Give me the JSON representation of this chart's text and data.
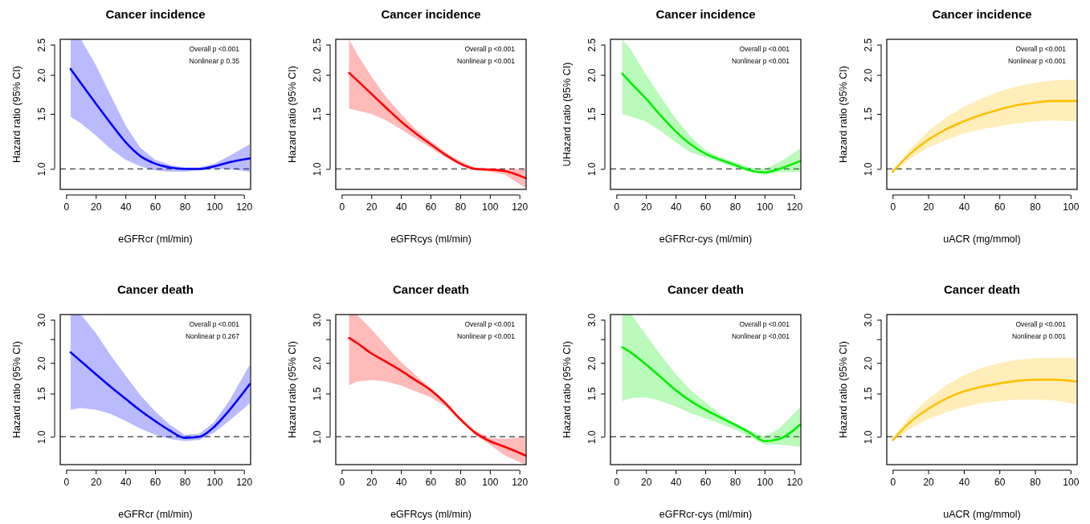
{
  "chart_data": [
    {
      "type": "line",
      "title": "Cancer incidence",
      "xlabel": "eGFRcr (ml/min)",
      "ylabel": "Hazard ratio (95% CI)",
      "log": "y",
      "xlim": [
        -4,
        124.5
      ],
      "xticks": [
        0,
        20,
        40,
        60,
        80,
        100,
        120
      ],
      "ylim": [
        0.86,
        2.6
      ],
      "yticks": [
        {
          "value": 1,
          "label": "1.0"
        },
        {
          "value": 1.5,
          "label": "1.5"
        },
        {
          "value": 2,
          "label": "2.0"
        },
        {
          "value": 2.5,
          "label": "2.5"
        }
      ],
      "annotations": [
        "Overall p <0.001",
        "Nonlinear p 0.35"
      ],
      "ref_lines": [
        {
          "axis": "y",
          "value": 1,
          "line_style": "dashed",
          "color": "#555555"
        }
      ],
      "series": [
        {
          "color": "#0000ff",
          "x": [
            3,
            10,
            20,
            30,
            40,
            50,
            60,
            70,
            80,
            90,
            100,
            110,
            124
          ],
          "values": [
            2.09,
            1.88,
            1.62,
            1.4,
            1.22,
            1.1,
            1.04,
            1.01,
            1.0,
            1.0,
            1.02,
            1.05,
            1.08
          ],
          "upper": [
            2.6,
            2.6,
            2.15,
            1.72,
            1.38,
            1.17,
            1.07,
            1.03,
            1.01,
            1.01,
            1.04,
            1.1,
            1.2
          ],
          "lower": [
            1.47,
            1.4,
            1.28,
            1.16,
            1.07,
            1.02,
            0.99,
            0.98,
            0.98,
            0.99,
            1.0,
            1.0,
            0.98
          ]
        }
      ]
    },
    {
      "type": "line",
      "title": "Cancer incidence",
      "xlabel": "eGFRcys (ml/min)",
      "ylabel": "Hazard ratio (95% CI)",
      "log": "y",
      "xlim": [
        -4,
        124.5
      ],
      "xticks": [
        0,
        20,
        40,
        60,
        80,
        100,
        120
      ],
      "ylim": [
        0.86,
        2.6
      ],
      "yticks": [
        {
          "value": 1,
          "label": "1.0"
        },
        {
          "value": 1.5,
          "label": "1.5"
        },
        {
          "value": 2,
          "label": "2.0"
        },
        {
          "value": 2.5,
          "label": "2.5"
        }
      ],
      "annotations": [
        "Overall p <0.001",
        "Nonlinear p <0.001"
      ],
      "ref_lines": [
        {
          "axis": "y",
          "value": 1,
          "line_style": "dashed",
          "color": "#555555"
        }
      ],
      "series": [
        {
          "color": "#ff0000",
          "x": [
            5,
            10,
            20,
            30,
            40,
            50,
            60,
            70,
            80,
            90,
            100,
            110,
            124
          ],
          "values": [
            2.03,
            1.93,
            1.74,
            1.57,
            1.42,
            1.3,
            1.2,
            1.11,
            1.04,
            1.0,
            0.995,
            0.985,
            0.935
          ],
          "upper": [
            2.6,
            2.35,
            1.98,
            1.7,
            1.5,
            1.34,
            1.23,
            1.13,
            1.06,
            1.01,
            1.0,
            1.0,
            1.0
          ],
          "lower": [
            1.56,
            1.54,
            1.5,
            1.43,
            1.34,
            1.25,
            1.17,
            1.09,
            1.03,
            0.99,
            0.98,
            0.96,
            0.87
          ]
        }
      ]
    },
    {
      "type": "line",
      "title": "Cancer incidence",
      "xlabel": "eGFRcr-cys (ml/min)",
      "ylabel": "UHazard ratio (95% CI)",
      "log": "y",
      "xlim": [
        -4,
        124.5
      ],
      "xticks": [
        0,
        20,
        40,
        60,
        80,
        100,
        120
      ],
      "ylim": [
        0.86,
        2.6
      ],
      "yticks": [
        {
          "value": 1,
          "label": "1.0"
        },
        {
          "value": 1.5,
          "label": "1.5"
        },
        {
          "value": 2,
          "label": "2.0"
        },
        {
          "value": 2.5,
          "label": "2.5"
        }
      ],
      "annotations": [
        "Overall p <0.001",
        "Nonlinear p <0.001"
      ],
      "ref_lines": [
        {
          "axis": "y",
          "value": 1,
          "line_style": "dashed",
          "color": "#555555"
        }
      ],
      "series": [
        {
          "color": "#00ee00",
          "x": [
            4,
            10,
            20,
            30,
            40,
            50,
            60,
            70,
            80,
            90,
            100,
            110,
            124
          ],
          "values": [
            2.02,
            1.88,
            1.68,
            1.48,
            1.32,
            1.2,
            1.12,
            1.07,
            1.03,
            0.99,
            0.975,
            1.0,
            1.06
          ],
          "upper": [
            2.6,
            2.4,
            2.0,
            1.7,
            1.45,
            1.27,
            1.15,
            1.09,
            1.05,
            1.01,
            1.0,
            1.05,
            1.16
          ],
          "lower": [
            1.5,
            1.47,
            1.42,
            1.32,
            1.22,
            1.13,
            1.09,
            1.05,
            1.01,
            0.98,
            0.955,
            0.975,
            0.98
          ]
        }
      ]
    },
    {
      "type": "line",
      "title": "Cancer incidence",
      "xlabel": "uACR (mg/mmol)",
      "ylabel": "Hazard ratio (95% CI)",
      "log": "y",
      "xlim": [
        -3.3,
        103.7
      ],
      "xticks": [
        0,
        20,
        40,
        60,
        80,
        100
      ],
      "ylim": [
        0.86,
        2.6
      ],
      "yticks": [
        {
          "value": 1,
          "label": "1.0"
        },
        {
          "value": 1.5,
          "label": "1.5"
        },
        {
          "value": 2,
          "label": "2.0"
        },
        {
          "value": 2.5,
          "label": "2.5"
        }
      ],
      "annotations": [
        "Overall p <0.001",
        "Nonlinear p <0.001"
      ],
      "ref_lines": [
        {
          "axis": "y",
          "value": 1,
          "line_style": "dashed",
          "color": "#555555"
        }
      ],
      "series": [
        {
          "color": "#ffc000",
          "x": [
            0,
            10,
            20,
            30,
            40,
            50,
            60,
            70,
            80,
            90,
            103
          ],
          "values": [
            0.98,
            1.12,
            1.24,
            1.34,
            1.42,
            1.49,
            1.55,
            1.6,
            1.63,
            1.65,
            1.65
          ],
          "upper": [
            0.98,
            1.16,
            1.32,
            1.46,
            1.58,
            1.68,
            1.77,
            1.84,
            1.89,
            1.92,
            1.93
          ],
          "lower": [
            0.97,
            1.08,
            1.17,
            1.24,
            1.3,
            1.34,
            1.37,
            1.4,
            1.42,
            1.43,
            1.42
          ]
        }
      ]
    },
    {
      "type": "line",
      "title": "Cancer death",
      "xlabel": "eGFRcr (ml/min)",
      "ylabel": "Hazard ratio (95% CI)",
      "log": "y",
      "xlim": [
        -4,
        124.5
      ],
      "xticks": [
        0,
        20,
        40,
        60,
        80,
        100,
        120
      ],
      "ylim": [
        0.77,
        3.15
      ],
      "yticks": [
        {
          "value": 1,
          "label": "1.0"
        },
        {
          "value": 1.5,
          "label": "1.5"
        },
        {
          "value": 2,
          "label": "2.0"
        },
        {
          "value": 2.5,
          "label": null
        },
        {
          "value": 3,
          "label": "3.0"
        }
      ],
      "annotations": [
        "Overall p <0.001",
        "Nonlinear p 0.267"
      ],
      "ref_lines": [
        {
          "axis": "y",
          "value": 1,
          "line_style": "dashed",
          "color": "#555555"
        }
      ],
      "series": [
        {
          "color": "#0000ff",
          "x": [
            3,
            10,
            20,
            30,
            40,
            50,
            60,
            70,
            80,
            90,
            100,
            110,
            124
          ],
          "values": [
            2.21,
            2.03,
            1.8,
            1.6,
            1.43,
            1.28,
            1.16,
            1.06,
            0.99,
            1.0,
            1.1,
            1.28,
            1.64
          ],
          "upper": [
            3.15,
            3.15,
            2.65,
            2.15,
            1.78,
            1.48,
            1.27,
            1.12,
            1.02,
            1.03,
            1.15,
            1.4,
            1.97
          ],
          "lower": [
            1.29,
            1.31,
            1.29,
            1.24,
            1.16,
            1.08,
            1.02,
            0.98,
            0.96,
            0.97,
            1.04,
            1.16,
            1.37
          ]
        }
      ]
    },
    {
      "type": "line",
      "title": "Cancer death",
      "xlabel": "eGFRcys (ml/min)",
      "ylabel": "Hazard ratio (95% CI)",
      "log": "y",
      "xlim": [
        -4,
        124.5
      ],
      "xticks": [
        0,
        20,
        40,
        60,
        80,
        100,
        120
      ],
      "ylim": [
        0.77,
        3.15
      ],
      "yticks": [
        {
          "value": 1,
          "label": "1.0"
        },
        {
          "value": 1.5,
          "label": "1.5"
        },
        {
          "value": 2,
          "label": "2.0"
        },
        {
          "value": 2.5,
          "label": null
        },
        {
          "value": 3,
          "label": "3.0"
        }
      ],
      "annotations": [
        "Overall p <0.001",
        "Nonlinear p <0.001"
      ],
      "ref_lines": [
        {
          "axis": "y",
          "value": 1,
          "line_style": "dashed",
          "color": "#555555"
        }
      ],
      "series": [
        {
          "color": "#ff0000",
          "x": [
            5,
            10,
            20,
            30,
            40,
            50,
            60,
            70,
            80,
            90,
            100,
            110,
            124
          ],
          "values": [
            2.53,
            2.42,
            2.19,
            2.02,
            1.86,
            1.7,
            1.55,
            1.37,
            1.18,
            1.04,
            0.96,
            0.91,
            0.84
          ],
          "upper": [
            3.15,
            3.15,
            2.75,
            2.35,
            2.02,
            1.78,
            1.58,
            1.39,
            1.2,
            1.06,
            0.99,
            0.98,
            1.0
          ],
          "lower": [
            1.62,
            1.68,
            1.7,
            1.68,
            1.62,
            1.53,
            1.45,
            1.33,
            1.16,
            1.02,
            0.93,
            0.84,
            0.77
          ]
        }
      ]
    },
    {
      "type": "line",
      "title": "Cancer death",
      "xlabel": "eGFRcr-cys (ml/min)",
      "ylabel": "Hazard ratio (95% CI)",
      "log": "y",
      "xlim": [
        -4,
        124.5
      ],
      "xticks": [
        0,
        20,
        40,
        60,
        80,
        100,
        120
      ],
      "ylim": [
        0.77,
        3.15
      ],
      "yticks": [
        {
          "value": 1,
          "label": "1.0"
        },
        {
          "value": 1.5,
          "label": "1.5"
        },
        {
          "value": 2,
          "label": "2.0"
        },
        {
          "value": 2.5,
          "label": null
        },
        {
          "value": 3,
          "label": "3.0"
        }
      ],
      "annotations": [
        "Overall p <0.001",
        "Nonlinear p <0.001"
      ],
      "ref_lines": [
        {
          "axis": "y",
          "value": 1,
          "line_style": "dashed",
          "color": "#555555"
        }
      ],
      "series": [
        {
          "color": "#00ee00",
          "x": [
            4,
            10,
            20,
            30,
            40,
            50,
            60,
            70,
            80,
            90,
            100,
            110,
            124
          ],
          "values": [
            2.32,
            2.2,
            1.97,
            1.75,
            1.55,
            1.4,
            1.29,
            1.2,
            1.12,
            1.04,
            0.96,
            0.98,
            1.12
          ],
          "upper": [
            3.15,
            3.15,
            2.6,
            2.15,
            1.8,
            1.55,
            1.38,
            1.24,
            1.14,
            1.06,
            1.0,
            1.08,
            1.32
          ],
          "lower": [
            1.4,
            1.44,
            1.45,
            1.4,
            1.33,
            1.25,
            1.19,
            1.13,
            1.07,
            1.0,
            0.93,
            0.93,
            0.91
          ]
        }
      ]
    },
    {
      "type": "line",
      "title": "Cancer death",
      "xlabel": "uACR (mg/mmol)",
      "ylabel": "Hazard ratio (95% CI)",
      "log": "y",
      "xlim": [
        -3.3,
        103.7
      ],
      "xticks": [
        0,
        20,
        40,
        60,
        80,
        100
      ],
      "ylim": [
        0.77,
        3.15
      ],
      "yticks": [
        {
          "value": 1,
          "label": "1.0"
        },
        {
          "value": 1.5,
          "label": "1.5"
        },
        {
          "value": 2,
          "label": "2.0"
        },
        {
          "value": 2.5,
          "label": null
        },
        {
          "value": 3,
          "label": "3.0"
        }
      ],
      "annotations": [
        "Overall p <0.001",
        "Nonlinear p 0.001"
      ],
      "ref_lines": [
        {
          "axis": "y",
          "value": 1,
          "line_style": "dashed",
          "color": "#555555"
        }
      ],
      "series": [
        {
          "color": "#ffc000",
          "x": [
            0,
            10,
            20,
            30,
            40,
            50,
            60,
            70,
            80,
            90,
            103
          ],
          "values": [
            0.97,
            1.15,
            1.3,
            1.43,
            1.53,
            1.6,
            1.65,
            1.69,
            1.71,
            1.71,
            1.68
          ],
          "upper": [
            0.98,
            1.22,
            1.43,
            1.62,
            1.78,
            1.91,
            2.0,
            2.06,
            2.09,
            2.1,
            2.1
          ],
          "lower": [
            0.96,
            1.08,
            1.18,
            1.26,
            1.32,
            1.37,
            1.4,
            1.42,
            1.42,
            1.41,
            1.36
          ]
        }
      ]
    }
  ]
}
